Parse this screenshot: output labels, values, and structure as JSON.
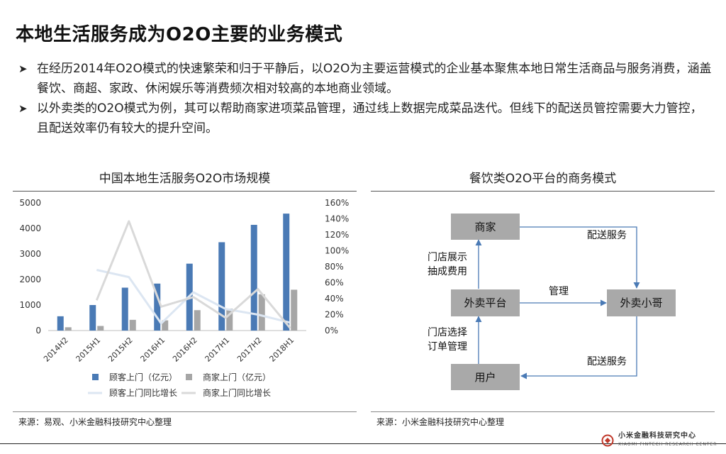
{
  "page": {
    "title": "本地生活服务成为O2O主要的业务模式",
    "bullets": [
      "在经历2014年O2O模式的快速繁荣和归于平静后，以O2O为主要运营模式的企业基本聚焦本地日常生活商品与服务消费，涵盖餐饮、商超、家政、休闲娱乐等消费频次相对较高的本地商业领域。",
      "以外卖类的O2O模式为例，其可以帮助商家进项菜品管理，通过线上数据完成菜品迭代。但线下的配送员管控需要大力管控，且配送效率仍有较大的提升空间。"
    ]
  },
  "left_panel": {
    "title": "中国本地生活服务O2O市场规模",
    "source": "来源：易观、小米金融科技研究中心整理"
  },
  "right_panel": {
    "title": "餐饮类O2O平台的商务模式",
    "source": "来源：小米金融科技研究中心整理",
    "diagram": {
      "nodes": {
        "merchant": "商家",
        "platform": "外卖平台",
        "courier": "外卖小哥",
        "user": "用户"
      },
      "edges": {
        "merchant_courier": "配送服务",
        "merchant_platform_1": "门店展示",
        "merchant_platform_2": "抽成费用",
        "platform_courier": "管理",
        "user_platform_1": "门店选择",
        "user_platform_2": "订单管理",
        "courier_user": "配送服务"
      }
    }
  },
  "footer": {
    "logo_text": "小米金融科技研究中心",
    "logo_sub": "XIAOMI FINTECH RESEARCH CENTER"
  },
  "chart_data": {
    "type": "bar",
    "title": "中国本地生活服务O2O市场规模",
    "categories": [
      "2014H2",
      "2015H1",
      "2015H2",
      "2016H1",
      "2016H2",
      "2017H1",
      "2017H2",
      "2018H1"
    ],
    "series": [
      {
        "name": "顾客上门（亿元）",
        "type": "bar",
        "axis": "left",
        "color": "#4a7ab5",
        "values": [
          560,
          1000,
          1680,
          1840,
          2620,
          3460,
          4140,
          4580
        ]
      },
      {
        "name": "商家上门（亿元）",
        "type": "bar",
        "axis": "left",
        "color": "#a6a6a6",
        "values": [
          130,
          180,
          420,
          400,
          800,
          860,
          1420,
          1600
        ]
      },
      {
        "name": "顾客上门同比增长",
        "type": "line",
        "axis": "right",
        "color": "#dce6f2",
        "values": [
          null,
          0.76,
          0.67,
          0.09,
          0.48,
          0.27,
          0.2,
          0.1
        ]
      },
      {
        "name": "商家上门同比增长",
        "type": "line",
        "axis": "right",
        "color": "#d9d9d9",
        "values": [
          null,
          0.38,
          1.37,
          0.3,
          0.42,
          0.16,
          0.52,
          0.03
        ]
      }
    ],
    "y_left": {
      "min": 0,
      "max": 5000,
      "ticks": [
        "5000",
        "4000",
        "3000",
        "2000",
        "1000",
        "0"
      ]
    },
    "y_right": {
      "min": 0,
      "max": 1.6,
      "ticks": [
        "160%",
        "140%",
        "120%",
        "100%",
        "80%",
        "60%",
        "40%",
        "20%",
        "0%"
      ]
    },
    "legend_position": "bottom"
  }
}
